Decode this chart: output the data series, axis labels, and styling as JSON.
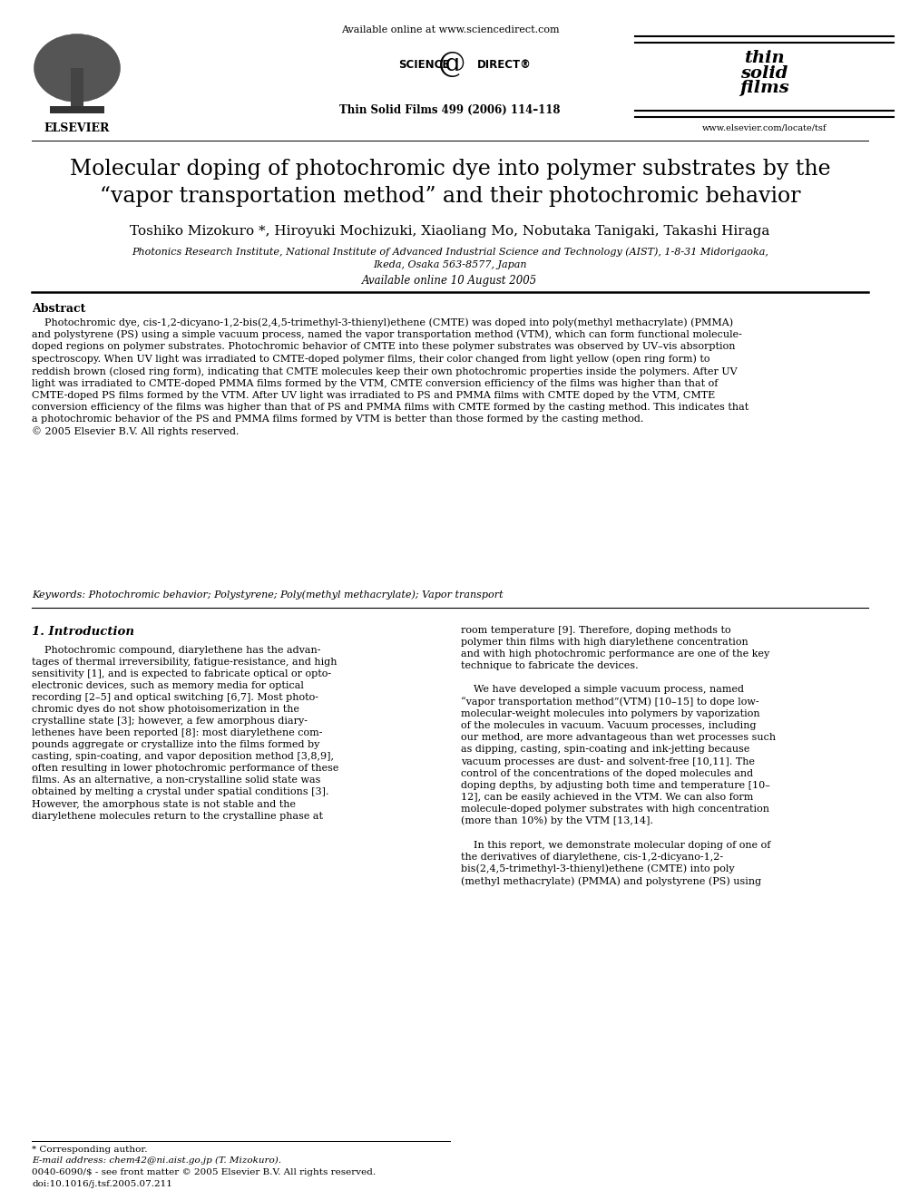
{
  "bg_color": "#ffffff",
  "fig_width": 9.92,
  "fig_height": 13.23,
  "dpi": 100,
  "header": {
    "available_online": "Available online at www.sciencedirect.com",
    "sciencedirect": "SCIENCE    DIRECT®",
    "journal_name": "Thin Solid Films 499 (2006) 114–118",
    "website": "www.elsevier.com/locate/tsf"
  },
  "title_line1": "Molecular doping of photochromic dye into polymer substrates by the",
  "title_line2": "“vapor transportation method” and their photochromic behavior",
  "authors": "Toshiko Mizokuro *, Hiroyuki Mochizuki, Xiaoliang Mo, Nobutaka Tanigaki, Takashi Hiraga",
  "affiliation1": "Photonics Research Institute, National Institute of Advanced Industrial Science and Technology (AIST), 1-8-31 Midorigaoka,",
  "affiliation2": "Ikeda, Osaka 563-8577, Japan",
  "available_online_date": "Available online 10 August 2005",
  "abstract_label": "Abstract",
  "abstract_text": "    Photochromic dye, cis-1,2-dicyano-1,2-bis(2,4,5-trimethyl-3-thienyl)ethene (CMTE) was doped into poly(methyl methacrylate) (PMMA)\nand polystyrene (PS) using a simple vacuum process, named the vapor transportation method (VTM), which can form functional molecule-\ndoped regions on polymer substrates. Photochromic behavior of CMTE into these polymer substrates was observed by UV–vis absorption\nspectroscopy. When UV light was irradiated to CMTE-doped polymer films, their color changed from light yellow (open ring form) to\nreddish brown (closed ring form), indicating that CMTE molecules keep their own photochromic properties inside the polymers. After UV\nlight was irradiated to CMTE-doped PMMA films formed by the VTM, CMTE conversion efficiency of the films was higher than that of\nCMTE-doped PS films formed by the VTM. After UV light was irradiated to PS and PMMA films with CMTE doped by the VTM, CMTE\nconversion efficiency of the films was higher than that of PS and PMMA films with CMTE formed by the casting method. This indicates that\na photochromic behavior of the PS and PMMA films formed by VTM is better than those formed by the casting method.\n© 2005 Elsevier B.V. All rights reserved.",
  "keywords": "Keywords: Photochromic behavior; Polystyrene; Poly(methyl methacrylate); Vapor transport",
  "section1_title": "1. Introduction",
  "col1_intro": "    Photochromic compound, diarylethene has the advan-\ntages of thermal irreversibility, fatigue-resistance, and high\nsensitivity [1], and is expected to fabricate optical or opto-\nelectronic devices, such as memory media for optical\nrecording [2–5] and optical switching [6,7]. Most photo-\nchromic dyes do not show photoisomerization in the\ncrystalline state [3]; however, a few amorphous diary-\nlethenes have been reported [8]: most diarylethene com-\npounds aggregate or crystallize into the films formed by\ncasting, spin-coating, and vapor deposition method [3,8,9],\noften resulting in lower photochromic performance of these\nfilms. As an alternative, a non-crystalline solid state was\nobtained by melting a crystal under spatial conditions [3].\nHowever, the amorphous state is not stable and the\ndiarylethene molecules return to the crystalline phase at",
  "col2_intro": "room temperature [9]. Therefore, doping methods to\npolymer thin films with high diarylethene concentration\nand with high photochromic performance are one of the key\ntechnique to fabricate the devices.\n\n    We have developed a simple vacuum process, named\n“vapor transportation method”(VTM) [10–15] to dope low-\nmolecular-weight molecules into polymers by vaporization\nof the molecules in vacuum. Vacuum processes, including\nour method, are more advantageous than wet processes such\nas dipping, casting, spin-coating and ink-jetting because\nvacuum processes are dust- and solvent-free [10,11]. The\ncontrol of the concentrations of the doped molecules and\ndoping depths, by adjusting both time and temperature [10–\n12], can be easily achieved in the VTM. We can also form\nmolecule-doped polymer substrates with high concentration\n(more than 10%) by the VTM [13,14].\n\n    In this report, we demonstrate molecular doping of one of\nthe derivatives of diarylethene, cis-1,2-dicyano-1,2-\nbis(2,4,5-trimethyl-3-thienyl)ethene (CMTE) into poly\n(methyl methacrylate) (PMMA) and polystyrene (PS) using",
  "footer_star": "* Corresponding author.",
  "footer_email": "E-mail address: chem42@ni.aist.go.jp (T. Mizokuro).",
  "footer_copy": "0040-6090/$ - see front matter © 2005 Elsevier B.V. All rights reserved.",
  "footer_doi": "doi:10.1016/j.tsf.2005.07.211"
}
